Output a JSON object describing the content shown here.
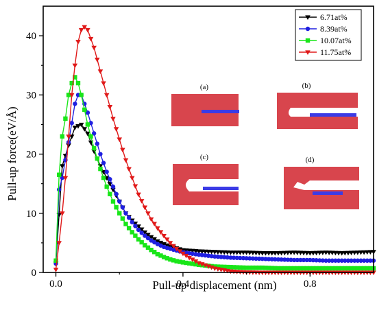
{
  "chart_data": {
    "type": "line",
    "title": "",
    "xlabel": "Pull-up displacement (nm)",
    "ylabel": "Pull-up force(eV/Å)",
    "xlim": [
      -0.04,
      1.0
    ],
    "ylim": [
      0,
      45
    ],
    "xticks": [
      0.0,
      0.4,
      0.8
    ],
    "yticks": [
      0,
      10,
      20,
      30,
      40
    ],
    "xtick_labels": [
      "0.0",
      "0.4",
      "0.8"
    ],
    "ytick_labels": [
      "0",
      "10",
      "20",
      "30",
      "40"
    ],
    "grid": false,
    "legend_position": "top-right",
    "series": [
      {
        "name": "6.71at%",
        "color": "#000000",
        "marker": "triangle-down",
        "x": [
          0.0,
          0.02,
          0.04,
          0.06,
          0.08,
          0.1,
          0.12,
          0.14,
          0.16,
          0.18,
          0.2,
          0.22,
          0.24,
          0.26,
          0.28,
          0.3,
          0.32,
          0.34,
          0.36,
          0.38,
          0.4,
          0.45,
          0.5,
          0.55,
          0.6,
          0.65,
          0.7,
          0.75,
          0.8,
          0.85,
          0.9,
          0.95,
          1.0
        ],
        "values": [
          1.5,
          18.0,
          21.5,
          24.5,
          25.0,
          23.5,
          20.5,
          18.0,
          16.0,
          14.0,
          12.0,
          10.0,
          8.8,
          7.8,
          6.8,
          6.0,
          5.3,
          4.8,
          4.4,
          4.1,
          3.8,
          3.6,
          3.5,
          3.4,
          3.4,
          3.3,
          3.3,
          3.4,
          3.3,
          3.4,
          3.3,
          3.4,
          3.5
        ]
      },
      {
        "name": "8.39at%",
        "color": "#1f1fe0",
        "marker": "circle",
        "x": [
          0.0,
          0.01,
          0.02,
          0.04,
          0.06,
          0.07,
          0.08,
          0.1,
          0.12,
          0.14,
          0.16,
          0.18,
          0.2,
          0.22,
          0.24,
          0.26,
          0.28,
          0.3,
          0.32,
          0.34,
          0.36,
          0.38,
          0.4,
          0.45,
          0.5,
          0.55,
          0.6,
          0.65,
          0.7,
          0.75,
          0.8,
          0.85,
          0.9,
          0.95,
          1.0
        ],
        "values": [
          1.5,
          14.0,
          16.0,
          22.0,
          28.5,
          30.0,
          30.0,
          27.0,
          23.5,
          20.0,
          17.0,
          14.5,
          12.0,
          10.0,
          8.5,
          7.2,
          6.2,
          5.4,
          4.8,
          4.3,
          4.0,
          3.7,
          3.4,
          3.0,
          2.7,
          2.5,
          2.4,
          2.3,
          2.2,
          2.1,
          2.1,
          2.0,
          2.0,
          2.0,
          2.0
        ]
      },
      {
        "name": "10.07at%",
        "color": "#19e619",
        "marker": "square",
        "x": [
          0.0,
          0.01,
          0.02,
          0.03,
          0.04,
          0.05,
          0.06,
          0.07,
          0.08,
          0.09,
          0.1,
          0.12,
          0.14,
          0.16,
          0.18,
          0.2,
          0.22,
          0.24,
          0.26,
          0.28,
          0.3,
          0.32,
          0.34,
          0.36,
          0.38,
          0.4,
          0.45,
          0.5,
          0.55,
          0.6,
          0.65,
          0.7,
          0.75,
          0.8,
          0.85,
          0.9,
          0.95,
          1.0
        ],
        "values": [
          2.0,
          16.5,
          23.0,
          26.0,
          30.0,
          32.0,
          33.0,
          32.0,
          30.0,
          27.5,
          25.0,
          21.0,
          17.5,
          14.5,
          12.0,
          10.0,
          8.2,
          6.8,
          5.6,
          4.6,
          3.8,
          3.1,
          2.6,
          2.2,
          1.9,
          1.7,
          1.3,
          1.0,
          0.9,
          0.8,
          0.8,
          0.7,
          0.7,
          0.7,
          0.7,
          0.7,
          0.7,
          0.7
        ]
      },
      {
        "name": "11.75at%",
        "color": "#e01919",
        "marker": "triangle-down",
        "x": [
          0.0,
          0.01,
          0.02,
          0.03,
          0.04,
          0.05,
          0.06,
          0.07,
          0.08,
          0.09,
          0.1,
          0.11,
          0.12,
          0.14,
          0.16,
          0.18,
          0.2,
          0.22,
          0.24,
          0.26,
          0.28,
          0.3,
          0.32,
          0.34,
          0.36,
          0.38,
          0.4,
          0.42,
          0.45,
          0.5,
          0.55,
          0.6,
          0.65,
          0.7,
          0.75,
          0.8,
          0.85,
          0.9,
          0.95,
          1.0
        ],
        "values": [
          0.5,
          5.0,
          10.0,
          16.0,
          23.0,
          30.0,
          35.0,
          39.0,
          41.0,
          41.5,
          41.0,
          39.5,
          38.0,
          34.0,
          30.0,
          26.0,
          22.5,
          19.0,
          16.0,
          13.2,
          11.0,
          9.0,
          7.5,
          6.2,
          5.0,
          4.0,
          3.2,
          2.5,
          1.6,
          0.7,
          0.2,
          0.05,
          0.0,
          0.0,
          0.0,
          0.0,
          0.0,
          0.0,
          0.0,
          0.0
        ]
      }
    ],
    "inset_labels": [
      "(a)",
      "(b)",
      "(c)",
      "(d)"
    ]
  }
}
